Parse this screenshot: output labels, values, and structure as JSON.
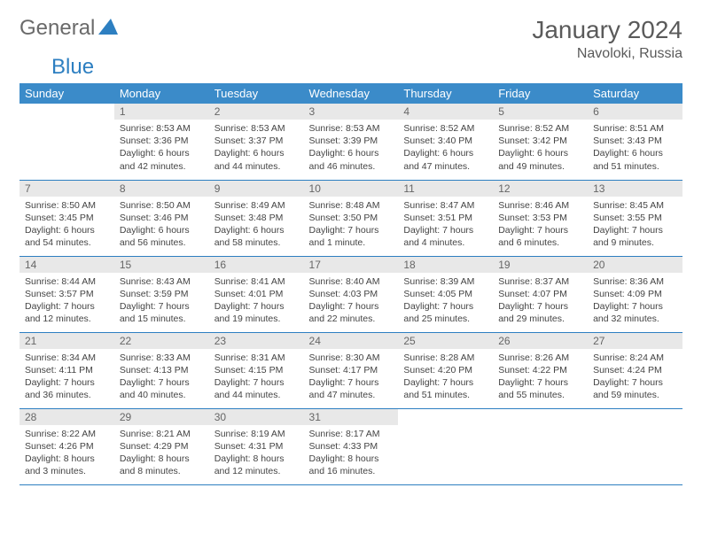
{
  "logo": {
    "text1": "General",
    "text2": "Blue"
  },
  "header": {
    "title": "January 2024",
    "location": "Navoloki, Russia"
  },
  "colors": {
    "header_bg": "#3b8bc9",
    "header_fg": "#ffffff",
    "daynum_bg": "#e8e8e8",
    "daynum_fg": "#666666",
    "border": "#2d7fc1",
    "text": "#444444",
    "title": "#5a5a5a",
    "logo_gray": "#6a6a6a",
    "logo_blue": "#2d7fc1"
  },
  "weekdays": [
    "Sunday",
    "Monday",
    "Tuesday",
    "Wednesday",
    "Thursday",
    "Friday",
    "Saturday"
  ],
  "first_weekday_index": 1,
  "days": [
    {
      "n": 1,
      "sunrise": "8:53 AM",
      "sunset": "3:36 PM",
      "daylight": "6 hours and 42 minutes."
    },
    {
      "n": 2,
      "sunrise": "8:53 AM",
      "sunset": "3:37 PM",
      "daylight": "6 hours and 44 minutes."
    },
    {
      "n": 3,
      "sunrise": "8:53 AM",
      "sunset": "3:39 PM",
      "daylight": "6 hours and 46 minutes."
    },
    {
      "n": 4,
      "sunrise": "8:52 AM",
      "sunset": "3:40 PM",
      "daylight": "6 hours and 47 minutes."
    },
    {
      "n": 5,
      "sunrise": "8:52 AM",
      "sunset": "3:42 PM",
      "daylight": "6 hours and 49 minutes."
    },
    {
      "n": 6,
      "sunrise": "8:51 AM",
      "sunset": "3:43 PM",
      "daylight": "6 hours and 51 minutes."
    },
    {
      "n": 7,
      "sunrise": "8:50 AM",
      "sunset": "3:45 PM",
      "daylight": "6 hours and 54 minutes."
    },
    {
      "n": 8,
      "sunrise": "8:50 AM",
      "sunset": "3:46 PM",
      "daylight": "6 hours and 56 minutes."
    },
    {
      "n": 9,
      "sunrise": "8:49 AM",
      "sunset": "3:48 PM",
      "daylight": "6 hours and 58 minutes."
    },
    {
      "n": 10,
      "sunrise": "8:48 AM",
      "sunset": "3:50 PM",
      "daylight": "7 hours and 1 minute."
    },
    {
      "n": 11,
      "sunrise": "8:47 AM",
      "sunset": "3:51 PM",
      "daylight": "7 hours and 4 minutes."
    },
    {
      "n": 12,
      "sunrise": "8:46 AM",
      "sunset": "3:53 PM",
      "daylight": "7 hours and 6 minutes."
    },
    {
      "n": 13,
      "sunrise": "8:45 AM",
      "sunset": "3:55 PM",
      "daylight": "7 hours and 9 minutes."
    },
    {
      "n": 14,
      "sunrise": "8:44 AM",
      "sunset": "3:57 PM",
      "daylight": "7 hours and 12 minutes."
    },
    {
      "n": 15,
      "sunrise": "8:43 AM",
      "sunset": "3:59 PM",
      "daylight": "7 hours and 15 minutes."
    },
    {
      "n": 16,
      "sunrise": "8:41 AM",
      "sunset": "4:01 PM",
      "daylight": "7 hours and 19 minutes."
    },
    {
      "n": 17,
      "sunrise": "8:40 AM",
      "sunset": "4:03 PM",
      "daylight": "7 hours and 22 minutes."
    },
    {
      "n": 18,
      "sunrise": "8:39 AM",
      "sunset": "4:05 PM",
      "daylight": "7 hours and 25 minutes."
    },
    {
      "n": 19,
      "sunrise": "8:37 AM",
      "sunset": "4:07 PM",
      "daylight": "7 hours and 29 minutes."
    },
    {
      "n": 20,
      "sunrise": "8:36 AM",
      "sunset": "4:09 PM",
      "daylight": "7 hours and 32 minutes."
    },
    {
      "n": 21,
      "sunrise": "8:34 AM",
      "sunset": "4:11 PM",
      "daylight": "7 hours and 36 minutes."
    },
    {
      "n": 22,
      "sunrise": "8:33 AM",
      "sunset": "4:13 PM",
      "daylight": "7 hours and 40 minutes."
    },
    {
      "n": 23,
      "sunrise": "8:31 AM",
      "sunset": "4:15 PM",
      "daylight": "7 hours and 44 minutes."
    },
    {
      "n": 24,
      "sunrise": "8:30 AM",
      "sunset": "4:17 PM",
      "daylight": "7 hours and 47 minutes."
    },
    {
      "n": 25,
      "sunrise": "8:28 AM",
      "sunset": "4:20 PM",
      "daylight": "7 hours and 51 minutes."
    },
    {
      "n": 26,
      "sunrise": "8:26 AM",
      "sunset": "4:22 PM",
      "daylight": "7 hours and 55 minutes."
    },
    {
      "n": 27,
      "sunrise": "8:24 AM",
      "sunset": "4:24 PM",
      "daylight": "7 hours and 59 minutes."
    },
    {
      "n": 28,
      "sunrise": "8:22 AM",
      "sunset": "4:26 PM",
      "daylight": "8 hours and 3 minutes."
    },
    {
      "n": 29,
      "sunrise": "8:21 AM",
      "sunset": "4:29 PM",
      "daylight": "8 hours and 8 minutes."
    },
    {
      "n": 30,
      "sunrise": "8:19 AM",
      "sunset": "4:31 PM",
      "daylight": "8 hours and 12 minutes."
    },
    {
      "n": 31,
      "sunrise": "8:17 AM",
      "sunset": "4:33 PM",
      "daylight": "8 hours and 16 minutes."
    }
  ],
  "labels": {
    "sunrise": "Sunrise:",
    "sunset": "Sunset:",
    "daylight": "Daylight:"
  }
}
